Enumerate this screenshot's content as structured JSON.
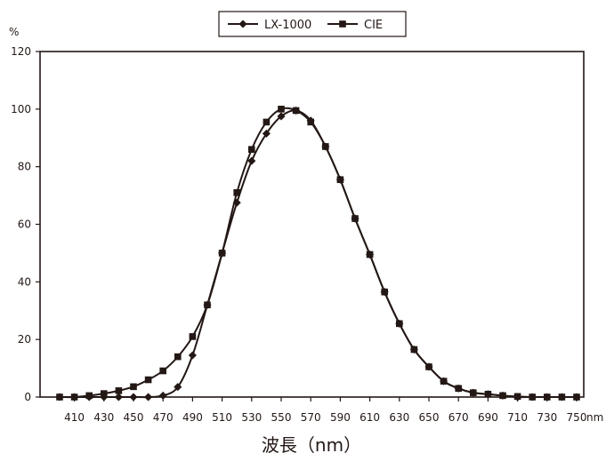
{
  "chart_data": {
    "type": "line",
    "y_unit": "%",
    "xlabel": "波長（nm）",
    "x_unit": "nm",
    "ylim": [
      0,
      120
    ],
    "yticks": [
      0,
      20,
      40,
      60,
      80,
      100,
      120
    ],
    "xlim": [
      400,
      750
    ],
    "x_tick_labels": [
      "410",
      "430",
      "450",
      "470",
      "490",
      "510",
      "530",
      "550",
      "570",
      "590",
      "610",
      "630",
      "650",
      "670",
      "690",
      "710",
      "730",
      "750"
    ],
    "grid": false,
    "legend_position": "top-center",
    "x": [
      400,
      410,
      420,
      430,
      440,
      450,
      460,
      470,
      480,
      490,
      500,
      510,
      520,
      530,
      540,
      550,
      560,
      570,
      580,
      590,
      600,
      610,
      620,
      630,
      640,
      650,
      660,
      670,
      680,
      690,
      700,
      710,
      720,
      730,
      740,
      750
    ],
    "series": [
      {
        "name": "LX-1000",
        "marker": "diamond",
        "color": "#231815",
        "values": [
          0,
          0,
          0,
          0,
          0,
          0,
          0,
          0.5,
          3.5,
          14.5,
          32,
          50,
          67.5,
          82,
          91.5,
          97.5,
          99.5,
          96,
          87,
          75.5,
          62,
          49.5,
          36.5,
          25.5,
          16.5,
          10.5,
          5.5,
          3,
          1.5,
          1,
          0.5,
          0,
          0,
          0,
          0,
          0
        ]
      },
      {
        "name": "CIE",
        "marker": "square",
        "color": "#231815",
        "values": [
          0,
          0,
          0.5,
          1.2,
          2.2,
          3.6,
          6,
          9.1,
          14,
          21,
          32,
          50,
          71,
          86,
          95.5,
          100,
          99.5,
          95.5,
          87,
          75.5,
          62,
          49.5,
          36.5,
          25.5,
          16.5,
          10.5,
          5.5,
          3,
          1.5,
          1,
          0.5,
          0.2,
          0,
          0,
          0,
          0
        ]
      }
    ]
  }
}
